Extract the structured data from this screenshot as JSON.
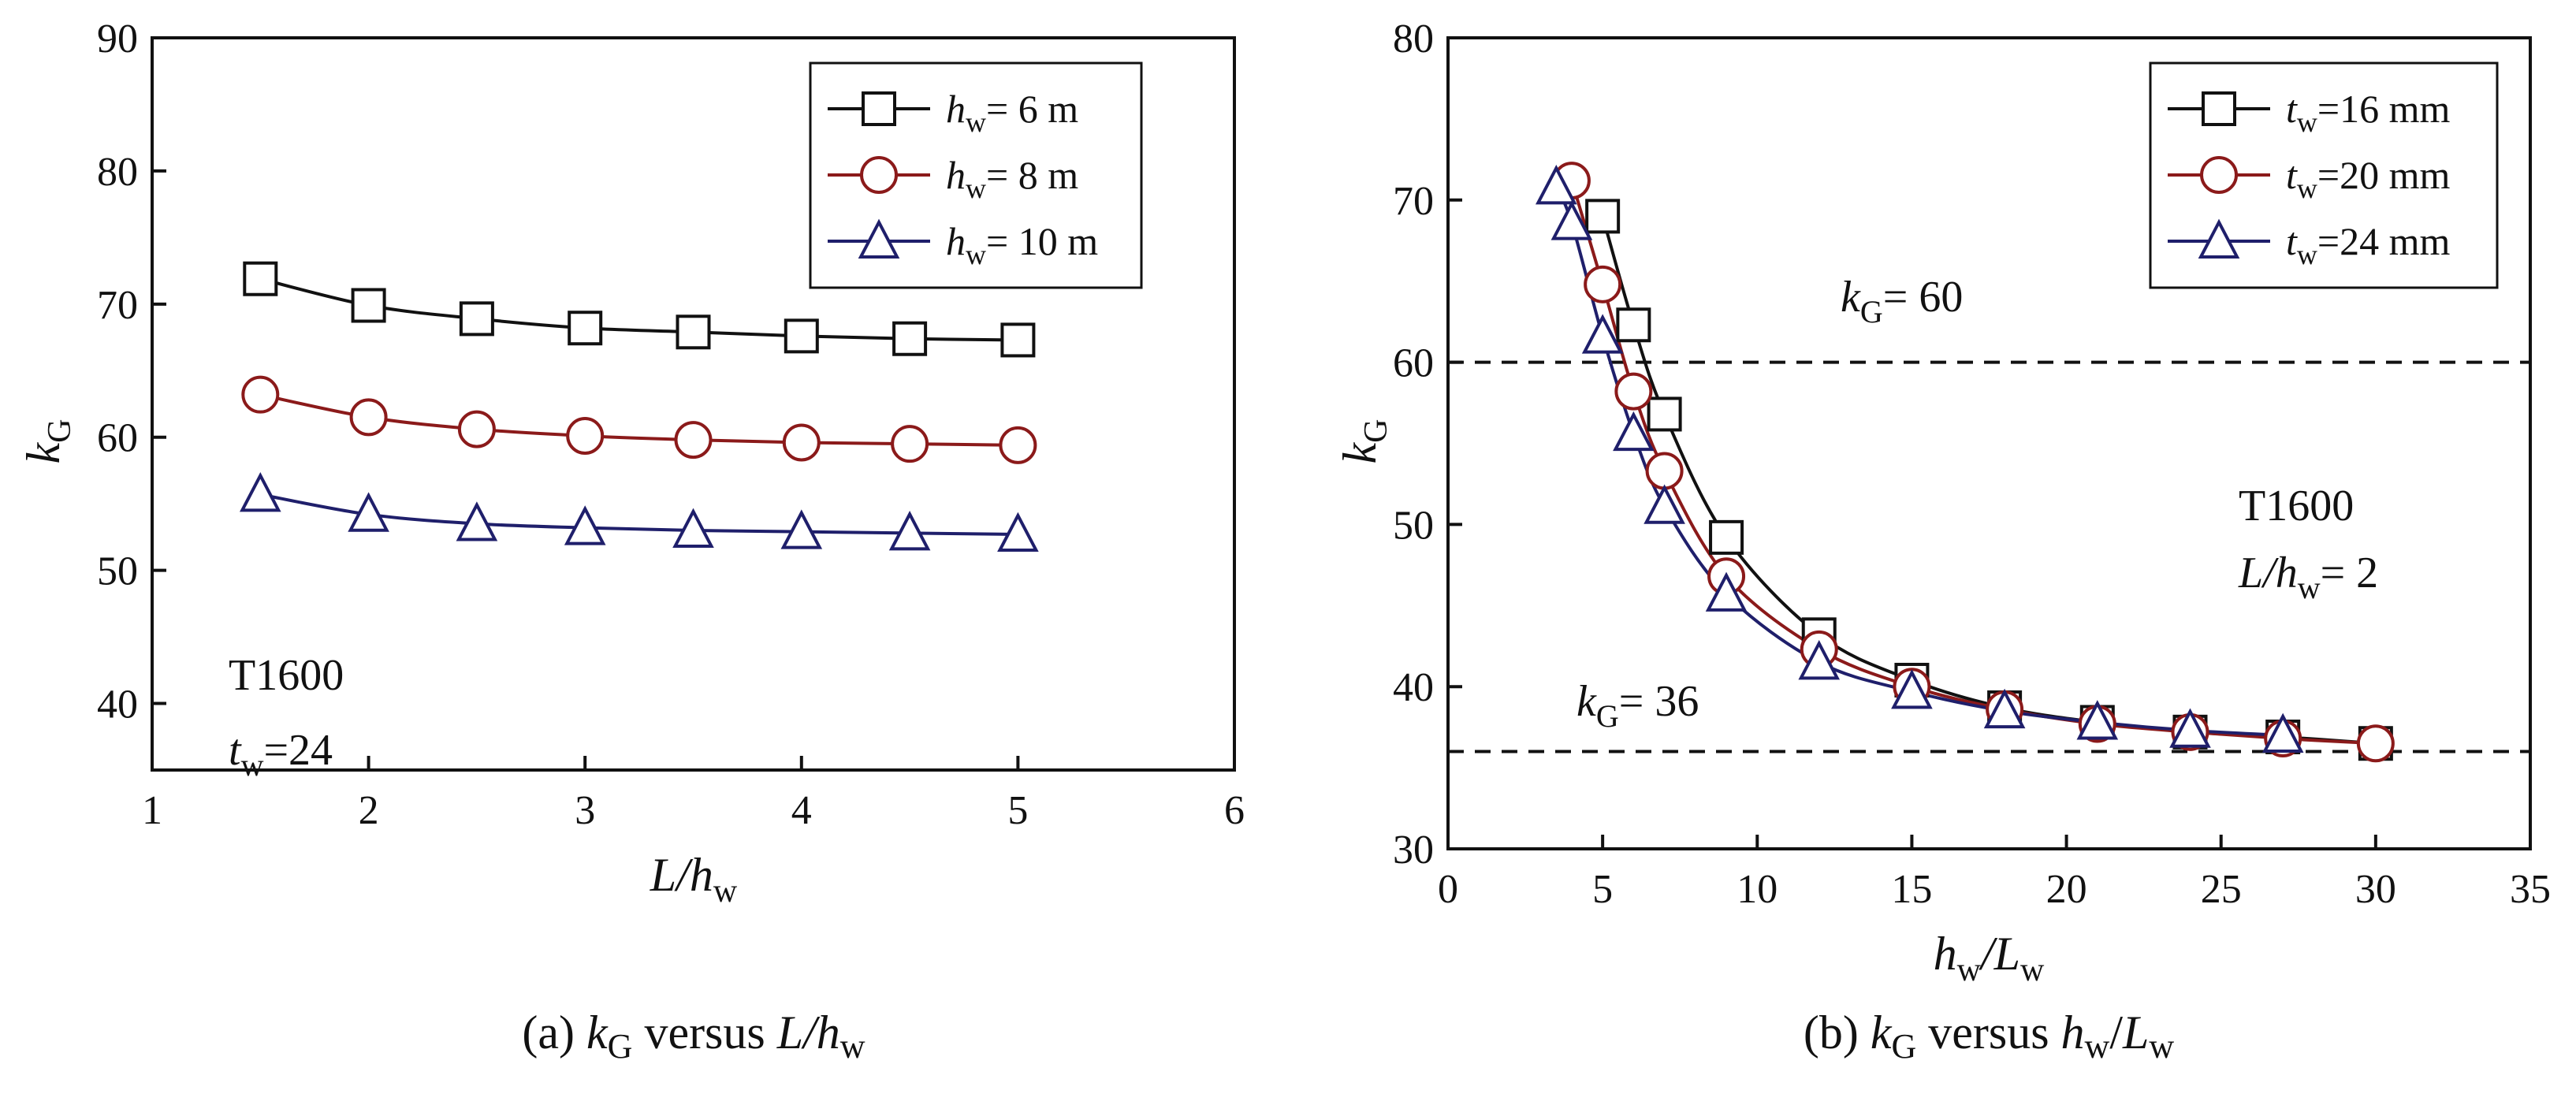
{
  "chart_data": [
    {
      "type": "line",
      "panel": "a",
      "caption": {
        "prefix": "(a) ",
        "k": "k",
        "ksub": "G",
        "mid": " versus ",
        "L": "L/",
        "h": "h",
        "hsub": "w"
      },
      "xlabel": {
        "main": "L/h",
        "sub": "w"
      },
      "ylabel": {
        "main": "k",
        "sub": "G"
      },
      "xlim": [
        1,
        6
      ],
      "ylim": [
        35,
        90
      ],
      "xticks": [
        "1",
        "2",
        "3",
        "4",
        "5",
        "6"
      ],
      "yticks": [
        "40",
        "50",
        "60",
        "70",
        "80",
        "90"
      ],
      "ytick_values": [
        40,
        50,
        60,
        70,
        80,
        90
      ],
      "x": [
        1.5,
        2,
        2.5,
        3,
        3.5,
        4,
        4.5,
        5
      ],
      "series": [
        {
          "name": "h",
          "sub": "w",
          "label": "= 6 m",
          "marker": "square",
          "color": "#111111",
          "values": [
            71.9,
            69.9,
            68.9,
            68.2,
            67.9,
            67.6,
            67.4,
            67.3
          ]
        },
        {
          "name": "h",
          "sub": "w",
          "label": "= 8 m",
          "marker": "circle",
          "color": "#8b1a1a",
          "values": [
            63.2,
            61.5,
            60.6,
            60.1,
            59.8,
            59.6,
            59.5,
            59.4
          ]
        },
        {
          "name": "h",
          "sub": "w",
          "label": "= 10 m",
          "marker": "triangle",
          "color": "#1f1f6b",
          "values": [
            55.7,
            54.2,
            53.5,
            53.2,
            53.0,
            52.9,
            52.8,
            52.7
          ]
        }
      ],
      "annotation": {
        "line1": "T1600",
        "t": "t",
        "tsub": "w",
        "tval": "=24"
      }
    },
    {
      "type": "line",
      "panel": "b",
      "caption": {
        "prefix": "(b) ",
        "k": "k",
        "ksub": "G",
        "mid": " versus ",
        "h": "h",
        "hsub": "w",
        "slash": "/",
        "L": "L",
        "Lsub": "w"
      },
      "xlabel": {
        "h": "h",
        "hsub": "w",
        "slash": "/",
        "L": "L",
        "Lsub": "w"
      },
      "ylabel": {
        "main": "k",
        "sub": "G"
      },
      "xlim": [
        0,
        35
      ],
      "ylim": [
        30,
        80
      ],
      "xticks": [
        "0",
        "5",
        "10",
        "15",
        "20",
        "25",
        "30",
        "35"
      ],
      "yticks": [
        "30",
        "40",
        "50",
        "60",
        "70",
        "80"
      ],
      "ytick_values": [
        30,
        40,
        50,
        60,
        70,
        80
      ],
      "series": [
        {
          "name": "t",
          "sub": "w",
          "label": "=16 mm",
          "marker": "square",
          "color": "#111111",
          "x": [
            5,
            6,
            7,
            9,
            12,
            15,
            18,
            21,
            24,
            27,
            30
          ],
          "values": [
            69.0,
            62.3,
            56.8,
            49.2,
            43.2,
            40.4,
            38.7,
            37.8,
            37.2,
            36.9,
            36.5
          ]
        },
        {
          "name": "t",
          "sub": "w",
          "label": "=20 mm",
          "marker": "circle",
          "color": "#8b1a1a",
          "x": [
            4,
            5,
            6,
            7,
            9,
            12,
            15,
            18,
            21,
            24,
            27,
            30
          ],
          "values": [
            71.2,
            64.8,
            58.2,
            53.3,
            46.8,
            42.3,
            40.0,
            38.6,
            37.7,
            37.2,
            36.8,
            36.5
          ]
        },
        {
          "name": "t",
          "sub": "w",
          "label": "=24 mm",
          "marker": "triangle",
          "color": "#1f1f6b",
          "x": [
            3.5,
            4,
            5,
            6,
            7,
            9,
            12,
            15,
            18,
            21,
            24,
            27
          ],
          "values": [
            70.8,
            68.6,
            61.6,
            55.6,
            51.1,
            45.7,
            41.5,
            39.7,
            38.5,
            37.8,
            37.3,
            37.0
          ]
        }
      ],
      "reference_lines": [
        {
          "y": 60,
          "label_k": "k",
          "label_sub": "G",
          "label_val": "= 60"
        },
        {
          "y": 36,
          "label_k": "k",
          "label_sub": "G",
          "label_val": "= 36"
        }
      ],
      "annotation": {
        "line1": "T1600",
        "L": "L/h",
        "Lsub": "w",
        "Lval": "= 2"
      }
    }
  ]
}
